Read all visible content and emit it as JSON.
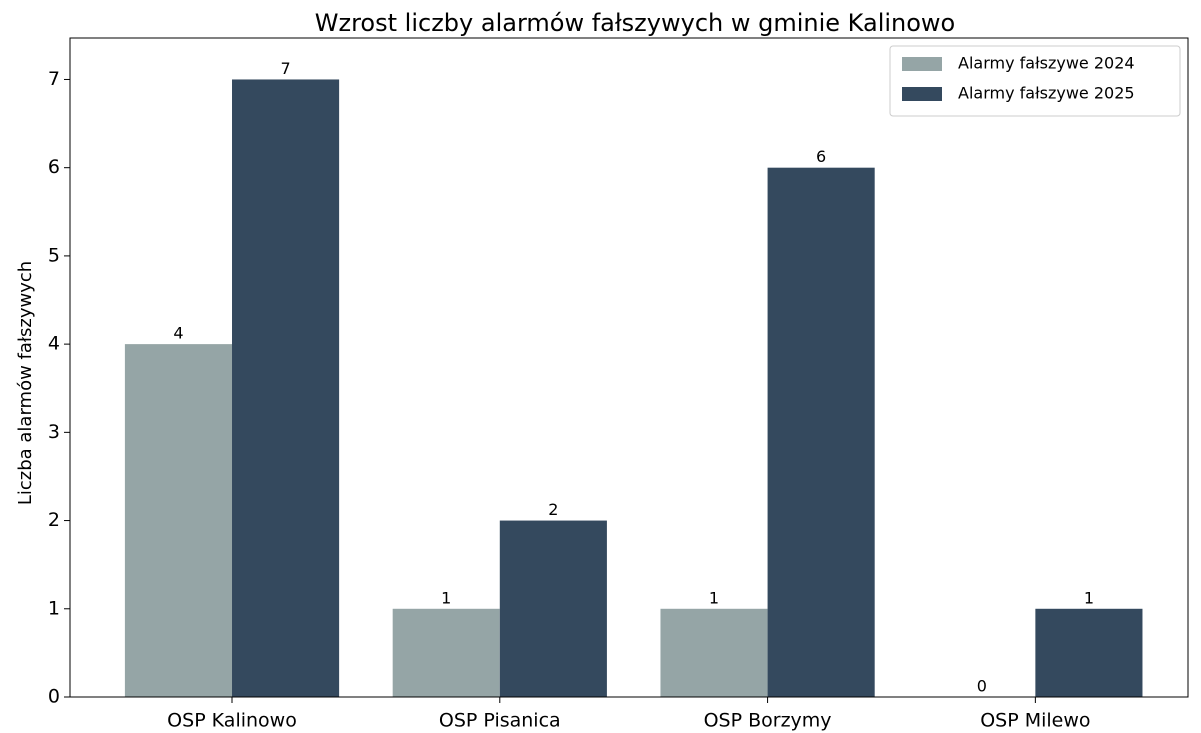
{
  "chart_data": {
    "type": "bar",
    "title": "Wzrost liczby alarmów fałszywych w gminie Kalinowo",
    "ylabel": "Liczba alarmów fałszywych",
    "categories": [
      "OSP Kalinowo",
      "OSP Pisanica",
      "OSP Borzymy",
      "OSP Milewo"
    ],
    "series": [
      {
        "name": "Alarmy fałszywe 2024",
        "color": "#95a5a6",
        "values": [
          4,
          1,
          1,
          0
        ]
      },
      {
        "name": "Alarmy fałszywe 2025",
        "color": "#34495e",
        "values": [
          7,
          2,
          6,
          1
        ]
      }
    ],
    "ylim": [
      0,
      7.47
    ],
    "yticks": [
      0,
      1,
      2,
      3,
      4,
      5,
      6,
      7
    ],
    "grid": false,
    "legend": "upper right"
  }
}
